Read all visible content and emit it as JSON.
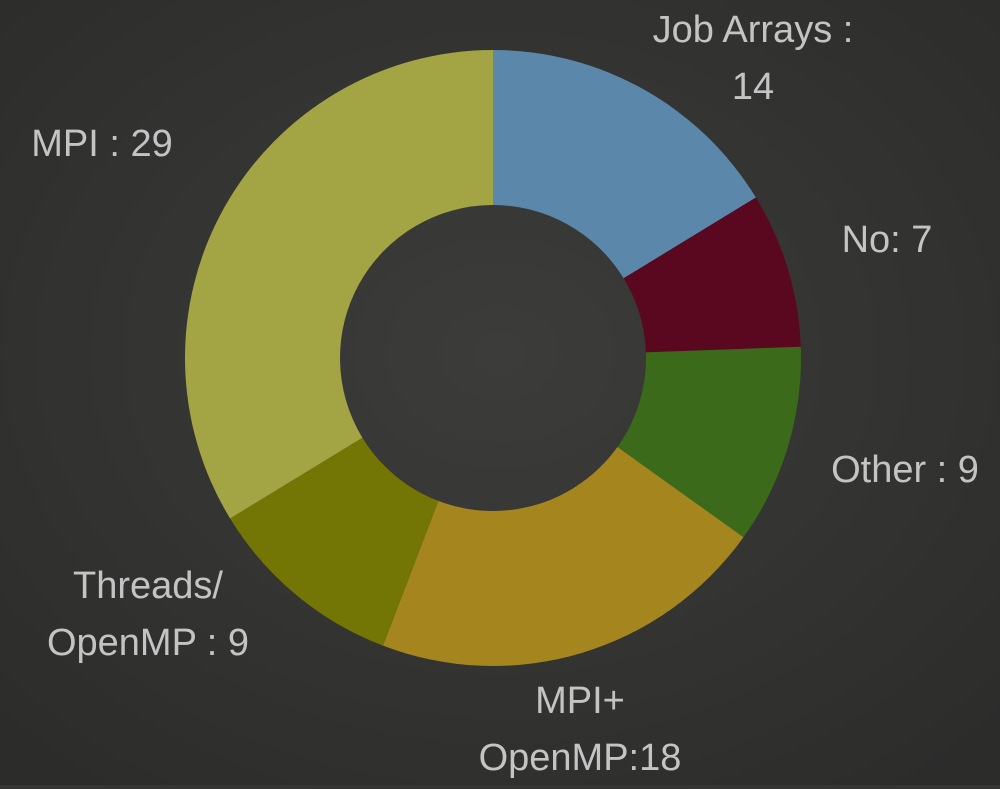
{
  "chart_data": {
    "type": "donut",
    "labels": [
      [
        "Job Arrays :",
        "14"
      ],
      [
        "No: 7"
      ],
      [
        "Other : 9"
      ],
      [
        "MPI+",
        "OpenMP:18"
      ],
      [
        "Threads/",
        "OpenMP : 9"
      ],
      [
        "MPI : 29"
      ]
    ],
    "values": [
      14,
      7,
      9,
      18,
      9,
      29
    ],
    "colors": [
      "#5a87aa",
      "#5a0720",
      "#3b6a1a",
      "#a5861e",
      "#737505",
      "#a3a444"
    ]
  }
}
